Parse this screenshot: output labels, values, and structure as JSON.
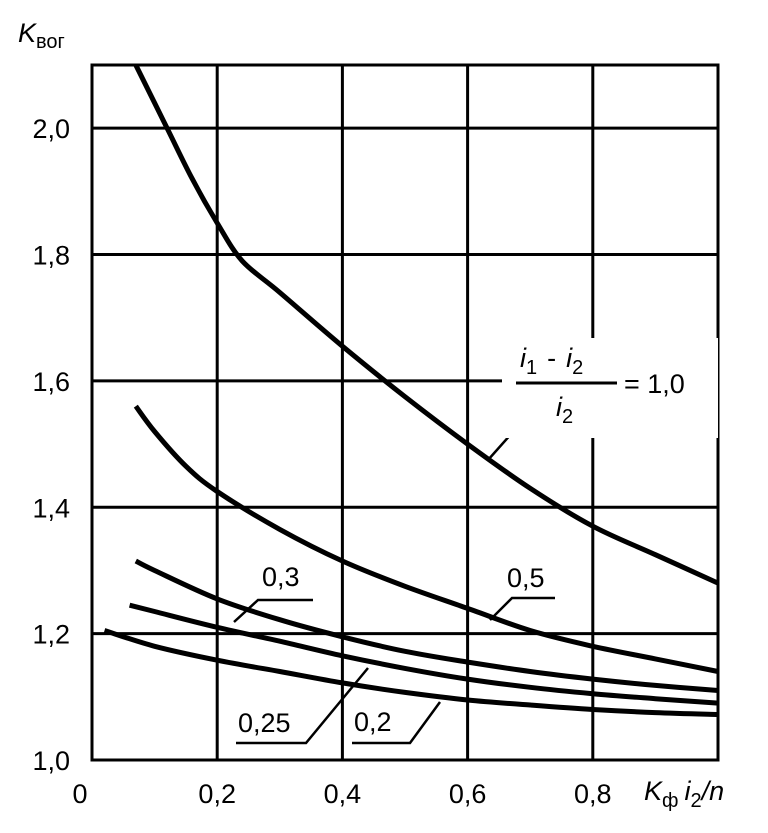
{
  "chart_data": {
    "type": "line",
    "ylabel": "K",
    "ylabel_sub": "вог",
    "xlabel_k": "K",
    "xlabel_k_sub": "ф",
    "xlabel_i": "i",
    "xlabel_i_sub": "2",
    "xlabel_tail": "/n",
    "xlim": [
      0,
      1.0
    ],
    "ylim": [
      1.0,
      2.1
    ],
    "xticks": [
      0,
      0.2,
      0.4,
      0.6,
      0.8
    ],
    "xtick_labels": [
      "0",
      "0,2",
      "0,4",
      "0,6",
      "0,8"
    ],
    "yticks": [
      1.0,
      1.2,
      1.4,
      1.6,
      1.8,
      2.0
    ],
    "ytick_labels": [
      "1,0",
      "1,2",
      "1,4",
      "1,6",
      "1,8",
      "2,0"
    ],
    "grid": true,
    "formula": {
      "num_i1": "i",
      "num_i1_sub": "1",
      "minus": "-",
      "num_i2": "i",
      "num_i2_sub": "2",
      "den_i": "i",
      "den_i_sub": "2",
      "equals": "= 1,0"
    },
    "series": [
      {
        "name": "1,0",
        "x": [
          0.07,
          0.12,
          0.16,
          0.2,
          0.24,
          0.3,
          0.4,
          0.5,
          0.6,
          0.7,
          0.8,
          0.9,
          1.0
        ],
        "y": [
          2.1,
          2.0,
          1.92,
          1.85,
          1.79,
          1.74,
          1.655,
          1.575,
          1.5,
          1.43,
          1.37,
          1.325,
          1.28
        ]
      },
      {
        "name": "0,5",
        "x": [
          0.07,
          0.1,
          0.15,
          0.2,
          0.3,
          0.4,
          0.5,
          0.6,
          0.7,
          0.8,
          0.9,
          1.0
        ],
        "y": [
          1.56,
          1.52,
          1.465,
          1.425,
          1.365,
          1.315,
          1.275,
          1.24,
          1.205,
          1.18,
          1.16,
          1.14
        ]
      },
      {
        "name": "0,3",
        "x": [
          0.07,
          0.1,
          0.2,
          0.3,
          0.4,
          0.5,
          0.6,
          0.7,
          0.8,
          0.9,
          1.0
        ],
        "y": [
          1.315,
          1.3,
          1.255,
          1.222,
          1.195,
          1.172,
          1.155,
          1.14,
          1.128,
          1.118,
          1.11
        ]
      },
      {
        "name": "0,25",
        "x": [
          0.06,
          0.1,
          0.2,
          0.3,
          0.4,
          0.5,
          0.6,
          0.7,
          0.8,
          0.9,
          1.0
        ],
        "y": [
          1.245,
          1.235,
          1.21,
          1.188,
          1.165,
          1.145,
          1.128,
          1.115,
          1.105,
          1.097,
          1.09
        ]
      },
      {
        "name": "0,2",
        "x": [
          0.02,
          0.1,
          0.2,
          0.3,
          0.4,
          0.5,
          0.6,
          0.7,
          0.8,
          0.9,
          1.0
        ],
        "y": [
          1.205,
          1.18,
          1.158,
          1.14,
          1.122,
          1.107,
          1.095,
          1.087,
          1.08,
          1.075,
          1.072
        ]
      }
    ]
  }
}
